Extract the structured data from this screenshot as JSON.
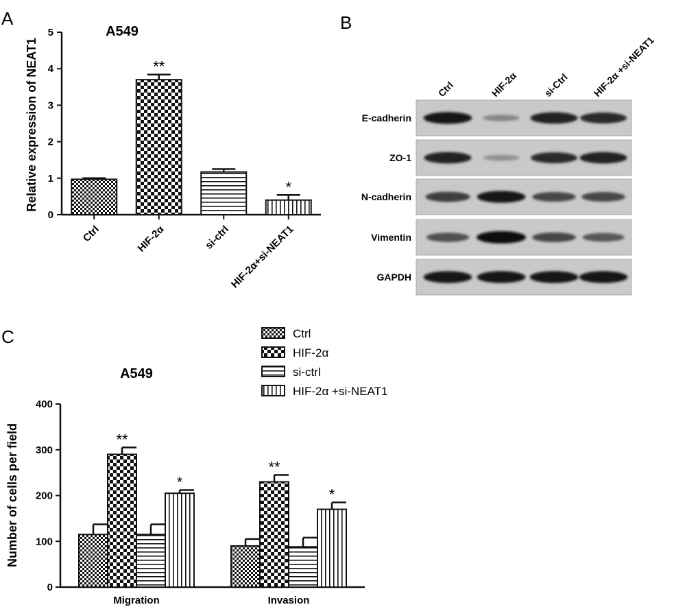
{
  "panels": {
    "a": "A",
    "b": "B",
    "c": "C"
  },
  "chart_data": [
    {
      "type": "bar",
      "title": "A549",
      "ylabel": "Relative expression of NEAT1",
      "xlabel": "",
      "ylim": [
        0,
        5
      ],
      "yticks": [
        "0",
        "1",
        "2",
        "3",
        "4",
        "5"
      ],
      "categories": [
        "Ctrl",
        "HIF-2α",
        "si-ctrl",
        "HIF-2α+si-NEAT1"
      ],
      "values": [
        0.97,
        3.7,
        1.17,
        0.4
      ],
      "errors": [
        0.03,
        0.14,
        0.08,
        0.14
      ],
      "significance": [
        "",
        "**",
        "",
        "*"
      ],
      "patterns": [
        "checker-small",
        "checker-large",
        "horizontal-lines",
        "vertical-lines"
      ]
    },
    {
      "type": "bar",
      "title": "A549",
      "ylabel": "Number of cells per field",
      "xlabel": "",
      "ylim": [
        0,
        400
      ],
      "yticks": [
        "0",
        "100",
        "200",
        "300",
        "400"
      ],
      "categories": [
        "Migration",
        "Invasion"
      ],
      "legend_position": "top",
      "series": [
        {
          "name": "Ctrl",
          "pattern": "checker-small",
          "values": [
            115,
            90
          ],
          "errors": [
            22,
            15
          ],
          "significance": [
            "",
            ""
          ]
        },
        {
          "name": "HIF-2α",
          "pattern": "checker-large",
          "values": [
            290,
            230
          ],
          "errors": [
            15,
            15
          ],
          "significance": [
            "**",
            "**"
          ]
        },
        {
          "name": "si-ctrl",
          "pattern": "horizontal-lines",
          "values": [
            115,
            88
          ],
          "errors": [
            22,
            20
          ],
          "significance": [
            "",
            ""
          ]
        },
        {
          "name": "HIF-2α +si-NEAT1",
          "pattern": "vertical-lines",
          "values": [
            205,
            170
          ],
          "errors": [
            7,
            15
          ],
          "significance": [
            "*",
            "*"
          ]
        }
      ]
    }
  ],
  "western_blot": {
    "lanes": [
      "Ctrl",
      "HIF-2α",
      "si-Ctrl",
      "HIF-2α +si-NEAT1"
    ],
    "proteins": [
      {
        "name": "E-cadherin",
        "band_intensity": [
          0.95,
          0.35,
          0.9,
          0.85
        ]
      },
      {
        "name": "ZO-1",
        "band_intensity": [
          0.9,
          0.3,
          0.85,
          0.9
        ]
      },
      {
        "name": "N-cadherin",
        "band_intensity": [
          0.75,
          0.95,
          0.7,
          0.7
        ]
      },
      {
        "name": "Vimentin",
        "band_intensity": [
          0.65,
          1.0,
          0.7,
          0.6
        ]
      },
      {
        "name": "GAPDH",
        "band_intensity": [
          0.95,
          0.95,
          0.95,
          0.95
        ]
      }
    ]
  }
}
